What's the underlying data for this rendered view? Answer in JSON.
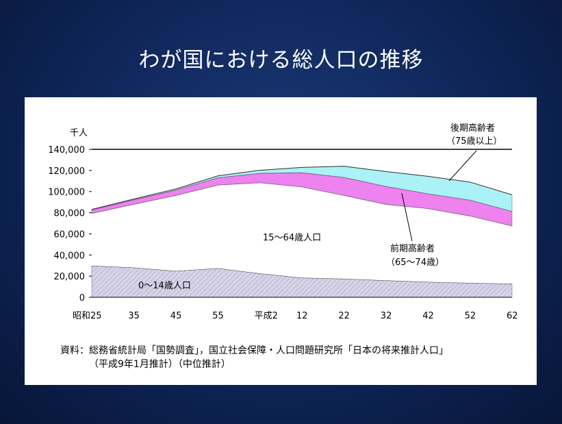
{
  "slide": {
    "title": "わが国における総人口の推移"
  },
  "chart_data": {
    "type": "area",
    "stacked": true,
    "ylabel": "千人",
    "ylim": [
      0,
      140000
    ],
    "yticks": [
      "140,000",
      "120,000",
      "100,000",
      "80,000",
      "60,000",
      "40,000",
      "20,000",
      "0"
    ],
    "ytick_values": [
      140000,
      120000,
      100000,
      80000,
      60000,
      40000,
      20000,
      0
    ],
    "x_tick_labels": [
      "昭和25",
      "35",
      "45",
      "55",
      "平成2",
      "12",
      "22",
      "32",
      "42",
      "52",
      "62"
    ],
    "x": [
      0,
      1,
      2,
      3,
      4,
      5,
      6,
      7,
      8,
      9,
      10
    ],
    "series": [
      {
        "name": "0〜14歳人口",
        "values": [
          29800,
          28100,
          24900,
          27500,
          22500,
          18500,
          17500,
          16000,
          14500,
          13500,
          12800
        ],
        "color": "#d8d4e8"
      },
      {
        "name": "15〜64歳人口",
        "values": [
          49700,
          60000,
          71500,
          78800,
          86000,
          86000,
          79000,
          72000,
          69500,
          63500,
          54800
        ],
        "color": "#ffffff"
      },
      {
        "name": "前期高齢者\n（65〜74歳）",
        "values": [
          3100,
          4200,
          5100,
          6800,
          8900,
          13400,
          17000,
          17000,
          14000,
          15000,
          13700
        ],
        "color": "#ee82ee"
      },
      {
        "name": "後期高齢者\n（75歳以上）",
        "values": [
          500,
          700,
          1000,
          1800,
          2800,
          5000,
          10500,
          14000,
          16500,
          17000,
          15700
        ],
        "color": "#aaf2f5"
      }
    ],
    "labels": {
      "young": "0〜14歳人口",
      "working": "15〜64歳人口",
      "early_elderly_1": "前期高齢者",
      "early_elderly_2": "（65〜74歳）",
      "late_elderly_1": "後期高齢者",
      "late_elderly_2": "（75歳以上）"
    }
  },
  "source": {
    "line1": "資料：総務省統計局「国勢調査」，国立社会保障・人口問題研究所「日本の将来推計人口」",
    "line2": "（平成9年1月推計）（中位推計）"
  }
}
